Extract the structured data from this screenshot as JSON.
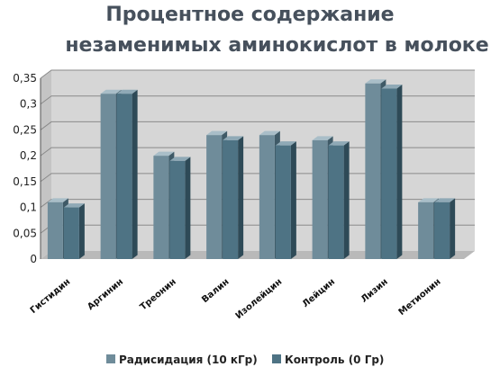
{
  "chart_data": {
    "type": "bar",
    "title": [
      "Процентное содержание",
      "незаменимых аминокислот в молоке"
    ],
    "categories": [
      "Гистидин",
      "Аргинин",
      "Треонин",
      "Валин",
      "Изолейцин",
      "Лейцин",
      "Лизин",
      "Метионин"
    ],
    "series": [
      {
        "name": "Радисидация (10 кГр)",
        "values": [
          0.11,
          0.32,
          0.2,
          0.24,
          0.24,
          0.23,
          0.34,
          0.11
        ]
      },
      {
        "name": "Контроль (0 Гр)",
        "values": [
          0.1,
          0.32,
          0.19,
          0.23,
          0.22,
          0.22,
          0.33,
          0.11
        ]
      }
    ],
    "yticks": [
      "0",
      "0,05",
      "0,1",
      "0,15",
      "0,2",
      "0,25",
      "0,3",
      "0,35"
    ],
    "ylim": [
      0,
      0.35
    ],
    "grid": true,
    "legend": "bottom",
    "colors": {
      "series1_front": "#6f8c9a",
      "series2_front": "#4e7384",
      "wall": "#d6d6d6",
      "floor": "#b9b9b9",
      "grid": "#8a8a8a"
    }
  }
}
